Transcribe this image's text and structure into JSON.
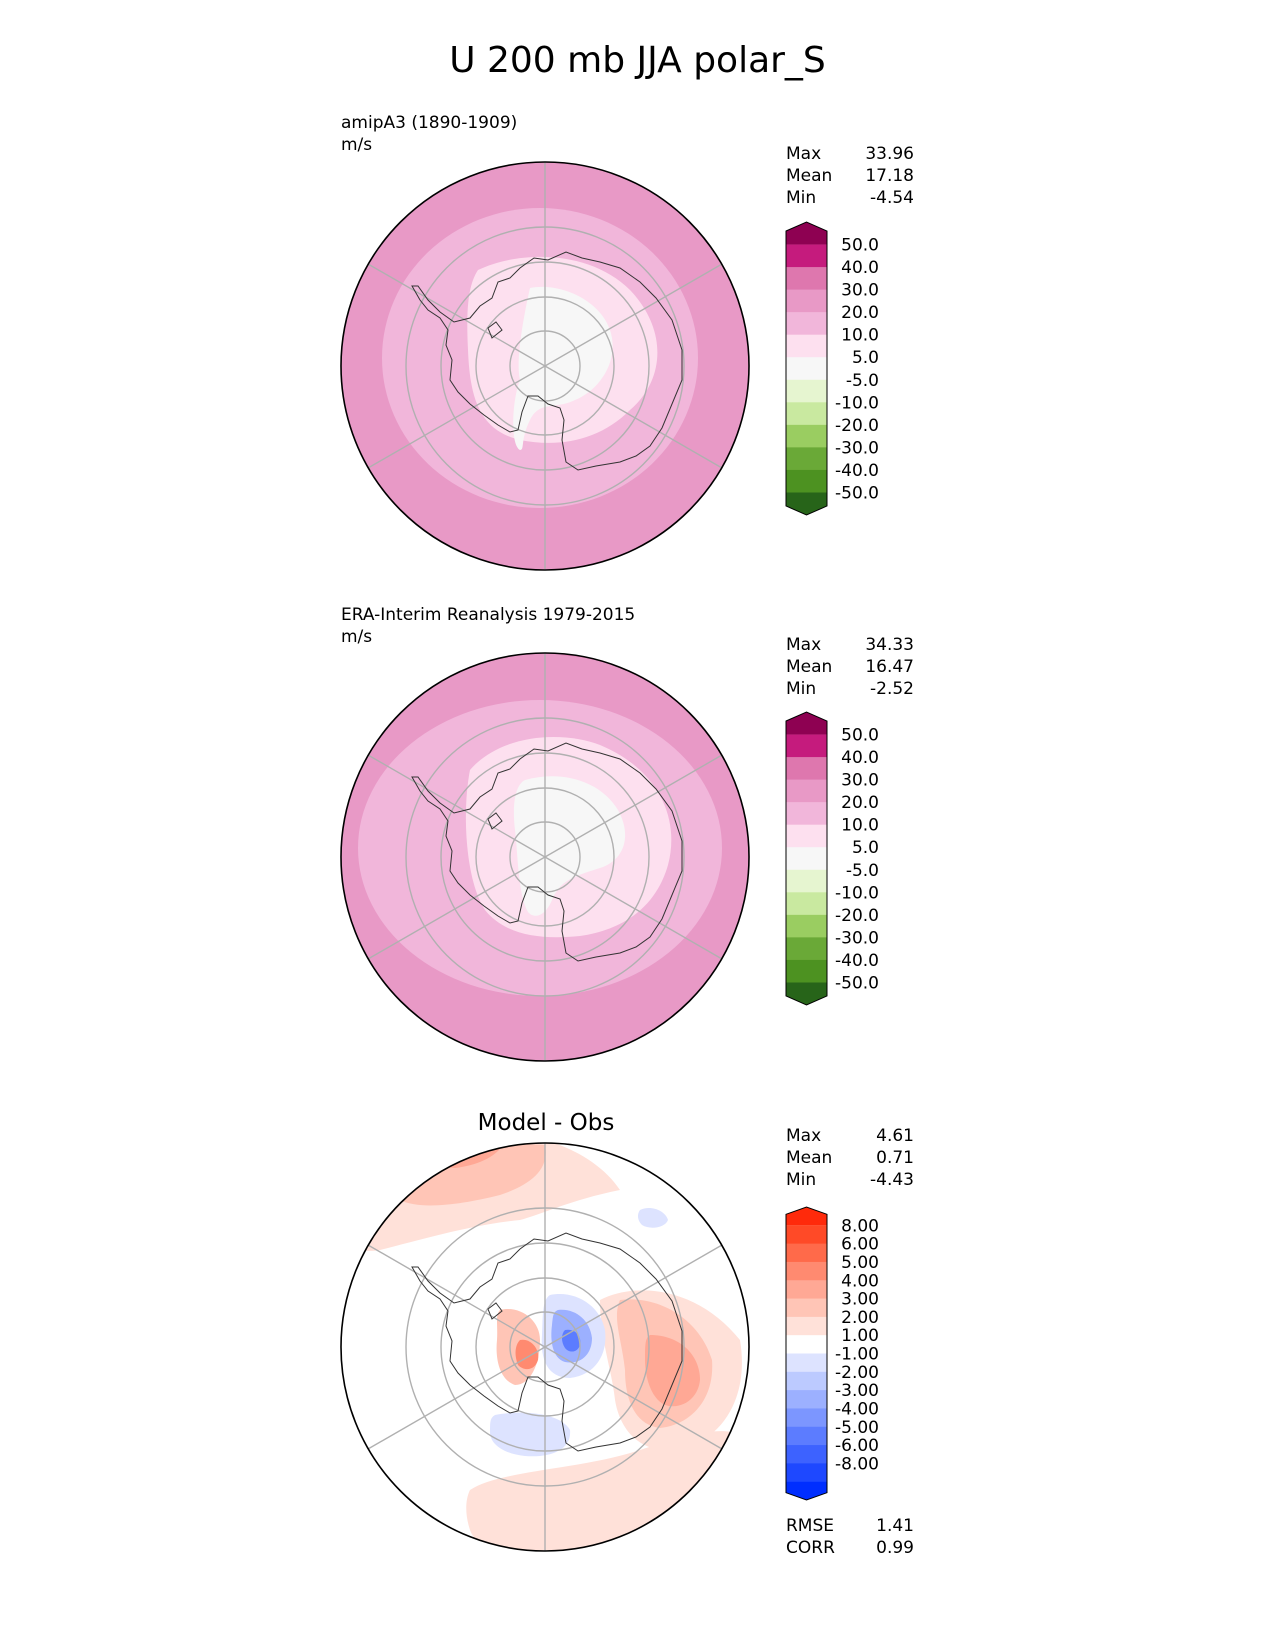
{
  "title": "U 200 mb JJA polar_S",
  "colors": {
    "land_outline": "#333333",
    "grid": "#b0b0b0",
    "border": "#000000"
  },
  "colorbars": {
    "field": {
      "bins": [
        "#8e0152",
        "#c51b7d",
        "#de77ae",
        "#e899c6",
        "#f1b6da",
        "#fde0ef",
        "#f7f7f7",
        "#e6f5d0",
        "#c9e9a0",
        "#9acd61",
        "#6aa937",
        "#4d9221",
        "#276419"
      ],
      "ticks": [
        "50.0",
        "40.0",
        "30.0",
        "20.0",
        "10.0",
        "5.0",
        "-5.0",
        "-10.0",
        "-20.0",
        "-30.0",
        "-40.0",
        "-50.0"
      ]
    },
    "diff": {
      "bins": [
        "#ff2a0b",
        "#ff4a27",
        "#ff6a4a",
        "#ff8a70",
        "#ffa895",
        "#ffc5b6",
        "#ffe1d9",
        "#ffffff",
        "#dde3ff",
        "#bccaff",
        "#9cb0ff",
        "#7c96ff",
        "#5c7cff",
        "#3d62ff",
        "#1e48ff",
        "#002eff"
      ],
      "ticks": [
        "8.00",
        "6.00",
        "5.00",
        "4.00",
        "3.00",
        "2.00",
        "1.00",
        "-1.00",
        "-2.00",
        "-3.00",
        "-4.00",
        "-5.00",
        "-6.00",
        "-8.00"
      ]
    }
  },
  "panels": [
    {
      "id": "test",
      "label_line1": "amipA3 (1890-1909)",
      "label_line2": "m/s",
      "stats": {
        "max_label": "Max",
        "max": "33.96",
        "mean_label": "Mean",
        "mean": "17.18",
        "min_label": "Min",
        "min": "-4.54"
      }
    },
    {
      "id": "ref",
      "label_line1": "ERA-Interim Reanalysis 1979-2015",
      "label_line2": "m/s",
      "stats": {
        "max_label": "Max",
        "max": "34.33",
        "mean_label": "Mean",
        "mean": "16.47",
        "min_label": "Min",
        "min": "-2.52"
      }
    },
    {
      "id": "diff",
      "title": "Model - Obs",
      "stats": {
        "max_label": "Max",
        "max": "4.61",
        "mean_label": "Mean",
        "mean": "0.71",
        "min_label": "Min",
        "min": "-4.43"
      },
      "metrics": {
        "rmse_label": "RMSE",
        "rmse": "1.41",
        "corr_label": "CORR",
        "corr": "0.99"
      }
    }
  ],
  "chart_data": [
    {
      "type": "heatmap",
      "projection": "south polar stereographic",
      "title": "amipA3 (1890-1909)",
      "units": "m/s",
      "levels": [
        -50,
        -40,
        -30,
        -20,
        -10,
        -5,
        5,
        10,
        20,
        30,
        40,
        50
      ],
      "stats": {
        "max": 33.96,
        "mean": 17.18,
        "min": -4.54
      }
    },
    {
      "type": "heatmap",
      "projection": "south polar stereographic",
      "title": "ERA-Interim Reanalysis 1979-2015",
      "units": "m/s",
      "levels": [
        -50,
        -40,
        -30,
        -20,
        -10,
        -5,
        5,
        10,
        20,
        30,
        40,
        50
      ],
      "stats": {
        "max": 34.33,
        "mean": 16.47,
        "min": -2.52
      }
    },
    {
      "type": "heatmap",
      "projection": "south polar stereographic",
      "title": "Model - Obs",
      "levels": [
        -8,
        -6,
        -5,
        -4,
        -3,
        -2,
        -1,
        1,
        2,
        3,
        4,
        5,
        6,
        8
      ],
      "stats": {
        "max": 4.61,
        "mean": 0.71,
        "min": -4.43
      },
      "metrics": {
        "rmse": 1.41,
        "corr": 0.99
      }
    }
  ]
}
